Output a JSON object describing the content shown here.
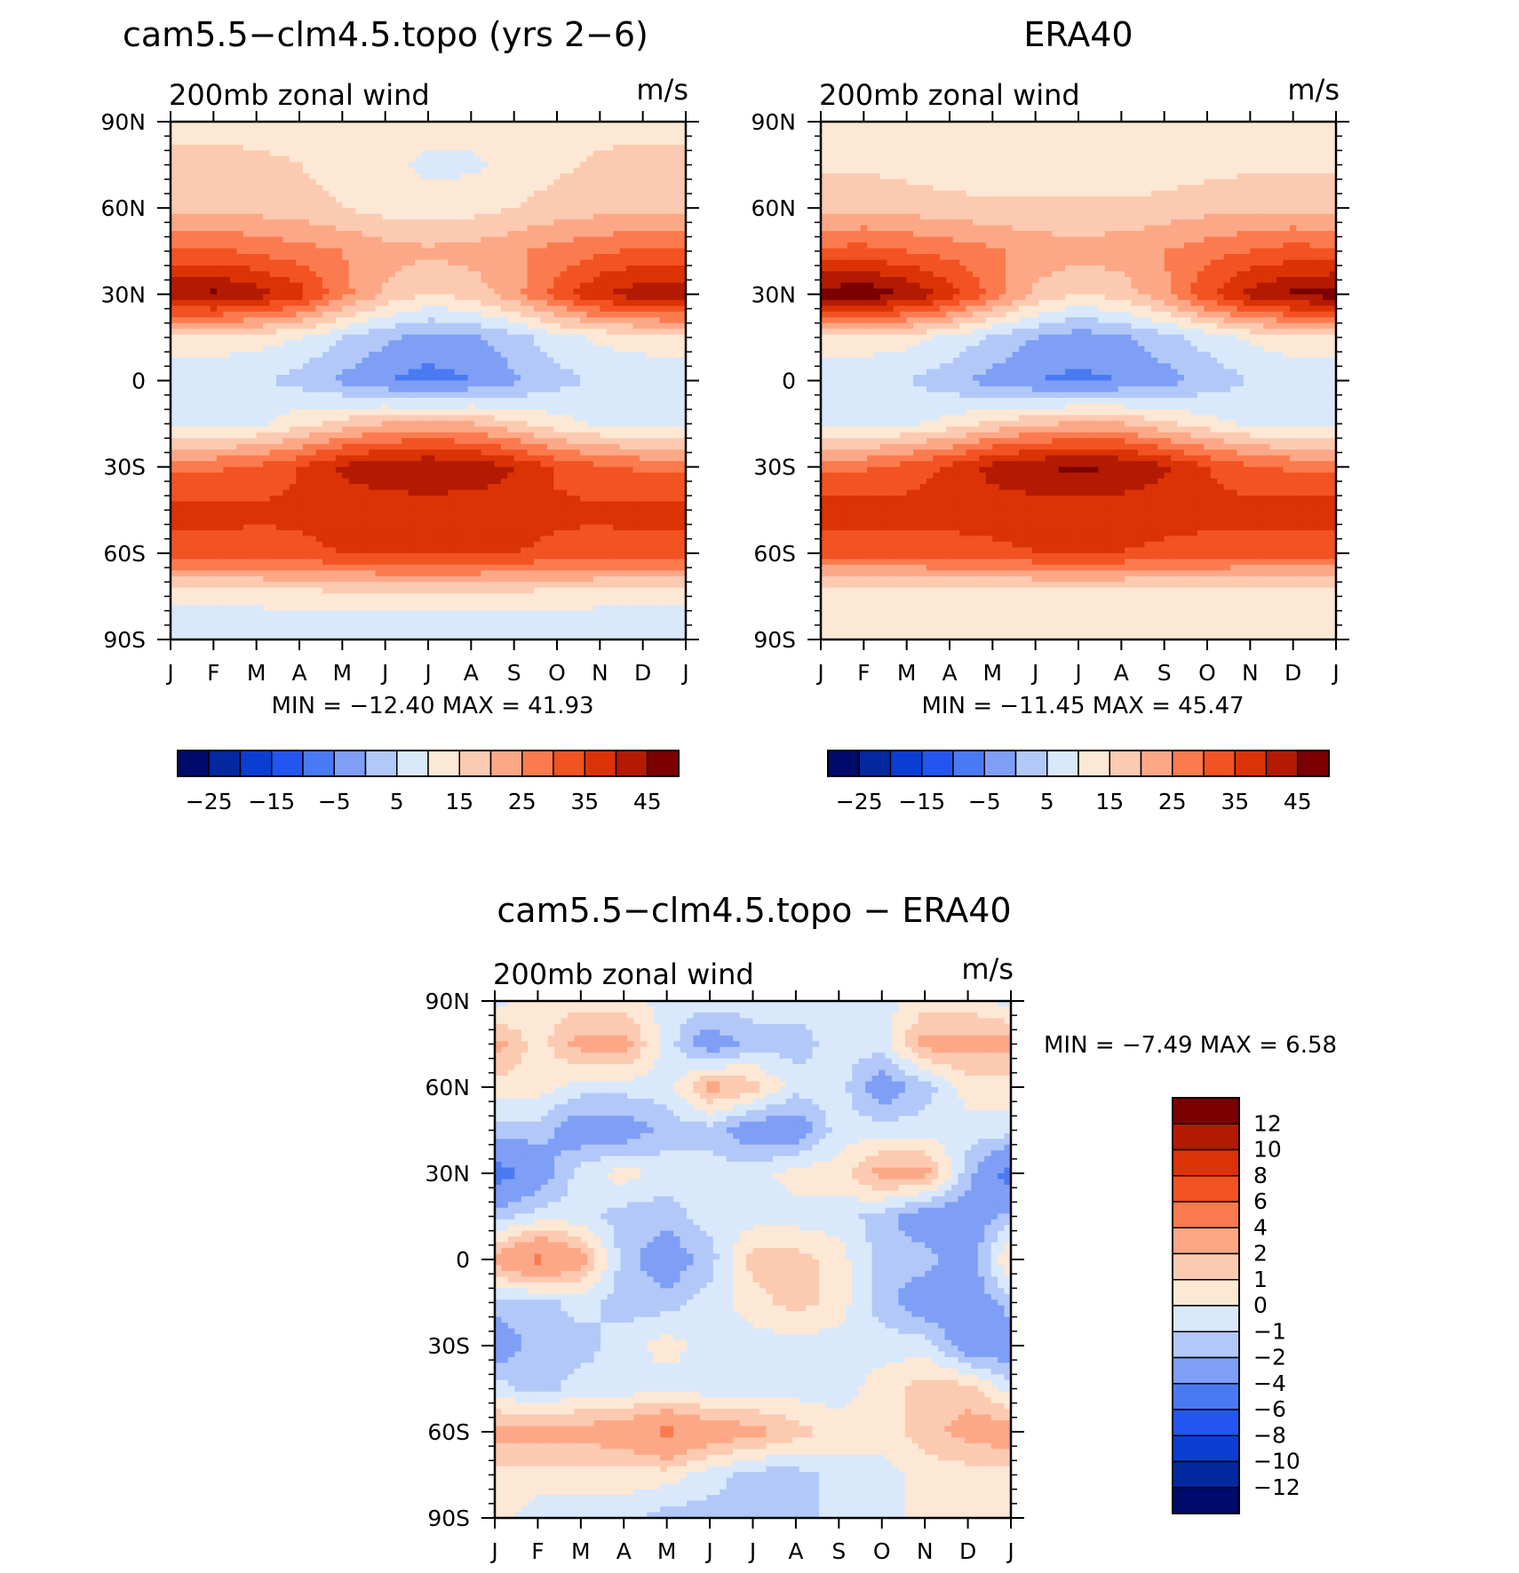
{
  "chart_data": [
    {
      "type": "heatmap",
      "title": "cam5.5−clm4.5.topo (yrs 2−6)",
      "subtitle": "200mb zonal wind",
      "units": "m/s",
      "x_ticks": [
        "J",
        "F",
        "M",
        "A",
        "M",
        "J",
        "J",
        "A",
        "S",
        "O",
        "N",
        "D",
        "J"
      ],
      "y_ticks": [
        "90N",
        "60N",
        "30N",
        "0",
        "30S",
        "60S",
        "90S"
      ],
      "min_label": "MIN = −12.40 MAX =   41.93",
      "min": -12.4,
      "max": 41.93,
      "levels": [
        -30,
        -25,
        -20,
        -15,
        -10,
        -5,
        0,
        5,
        10,
        15,
        20,
        25,
        30,
        35,
        40,
        45
      ],
      "colorbar_labels": [
        "−25",
        "−15",
        "−5",
        "5",
        "15",
        "25",
        "35",
        "45"
      ],
      "field": {
        "lat": [
          90,
          75,
          60,
          45,
          30,
          15,
          0,
          -15,
          -30,
          -45,
          -60,
          -75,
          -90
        ],
        "u": [
          [
            8,
            8,
            8,
            8,
            7,
            7,
            7,
            7,
            8,
            8,
            8,
            8,
            8
          ],
          [
            12,
            12,
            11,
            10,
            8,
            6,
            4,
            4,
            7,
            9,
            11,
            12,
            12
          ],
          [
            14,
            14,
            13,
            12,
            10,
            8,
            7,
            8,
            10,
            12,
            13,
            14,
            14
          ],
          [
            25,
            26,
            24,
            22,
            20,
            17,
            16,
            17,
            19,
            22,
            24,
            26,
            25
          ],
          [
            40,
            41,
            38,
            32,
            22,
            14,
            10,
            12,
            18,
            27,
            35,
            38,
            40
          ],
          [
            8,
            8,
            7,
            5,
            0,
            -4,
            -7,
            -6,
            -2,
            3,
            6,
            7,
            8
          ],
          [
            2,
            1,
            1,
            -2,
            -6,
            -10,
            -12,
            -10,
            -6,
            -2,
            1,
            2,
            2
          ],
          [
            3,
            3,
            4,
            8,
            12,
            15,
            16,
            15,
            11,
            7,
            4,
            3,
            3
          ],
          [
            24,
            24,
            26,
            30,
            36,
            39,
            40,
            39,
            35,
            29,
            26,
            24,
            24
          ],
          [
            32,
            32,
            31,
            31,
            32,
            32,
            32,
            32,
            32,
            31,
            31,
            32,
            32
          ],
          [
            28,
            28,
            28,
            29,
            30,
            31,
            31,
            31,
            30,
            29,
            28,
            28,
            28
          ],
          [
            6,
            6,
            6,
            7,
            7,
            8,
            8,
            8,
            7,
            7,
            6,
            6,
            6
          ],
          [
            2,
            2,
            2,
            2,
            1,
            0,
            0,
            0,
            1,
            2,
            2,
            2,
            2
          ]
        ]
      }
    },
    {
      "type": "heatmap",
      "title": "ERA40",
      "subtitle": "200mb zonal wind",
      "units": "m/s",
      "x_ticks": [
        "J",
        "F",
        "M",
        "A",
        "M",
        "J",
        "J",
        "A",
        "S",
        "O",
        "N",
        "D",
        "J"
      ],
      "y_ticks": [
        "90N",
        "60N",
        "30N",
        "0",
        "30S",
        "60S",
        "90S"
      ],
      "min_label": "MIN = −11.45 MAX =   45.47",
      "min": -11.45,
      "max": 45.47,
      "levels": [
        -30,
        -25,
        -20,
        -15,
        -10,
        -5,
        0,
        5,
        10,
        15,
        20,
        25,
        30,
        35,
        40,
        45
      ],
      "colorbar_labels": [
        "−25",
        "−15",
        "−5",
        "5",
        "15",
        "25",
        "35",
        "45"
      ],
      "field": {
        "lat": [
          90,
          75,
          60,
          45,
          30,
          15,
          0,
          -15,
          -30,
          -45,
          -60,
          -75,
          -90
        ],
        "u": [
          [
            8,
            8,
            8,
            8,
            8,
            8,
            8,
            8,
            8,
            8,
            8,
            8,
            8
          ],
          [
            9,
            9,
            8,
            7,
            6,
            6,
            6,
            6,
            7,
            8,
            9,
            9,
            9
          ],
          [
            14,
            14,
            13,
            12,
            11,
            11,
            11,
            11,
            12,
            13,
            14,
            14,
            14
          ],
          [
            26,
            27,
            25,
            23,
            21,
            18,
            17,
            18,
            20,
            23,
            25,
            27,
            26
          ],
          [
            43,
            44,
            40,
            33,
            23,
            14,
            10,
            12,
            19,
            29,
            37,
            41,
            43
          ],
          [
            8,
            8,
            7,
            4,
            -1,
            -5,
            -8,
            -6,
            -2,
            2,
            6,
            8,
            8
          ],
          [
            2,
            1,
            0,
            -3,
            -7,
            -10,
            -11,
            -10,
            -7,
            -3,
            0,
            2,
            2
          ],
          [
            3,
            3,
            4,
            7,
            11,
            14,
            16,
            15,
            11,
            7,
            4,
            3,
            3
          ],
          [
            24,
            24,
            27,
            31,
            37,
            40,
            41,
            40,
            36,
            30,
            26,
            24,
            24
          ],
          [
            33,
            33,
            32,
            32,
            32,
            32,
            32,
            32,
            32,
            32,
            32,
            33,
            33
          ],
          [
            27,
            27,
            27,
            28,
            29,
            30,
            30,
            30,
            29,
            28,
            27,
            27,
            27
          ],
          [
            6,
            6,
            5,
            5,
            5,
            5,
            5,
            5,
            5,
            5,
            5,
            6,
            6
          ],
          [
            6,
            6,
            6,
            6,
            6,
            6,
            6,
            6,
            6,
            6,
            6,
            6,
            6
          ]
        ]
      }
    },
    {
      "type": "heatmap",
      "title": "cam5.5−clm4.5.topo − ERA40",
      "subtitle": "200mb zonal wind",
      "units": "m/s",
      "x_ticks": [
        "J",
        "F",
        "M",
        "A",
        "M",
        "J",
        "J",
        "A",
        "S",
        "O",
        "N",
        "D",
        "J"
      ],
      "y_ticks": [
        "90N",
        "60N",
        "30N",
        "0",
        "30S",
        "60S",
        "90S"
      ],
      "min_label": "MIN =   −7.49 MAX =    6.58",
      "min": -7.49,
      "max": 6.58,
      "levels": [
        -12,
        -10,
        -8,
        -6,
        -4,
        -2,
        -1,
        0,
        1,
        2,
        4,
        6,
        8,
        10,
        12
      ],
      "colorbar_labels": [
        "12",
        "10",
        "8",
        "6",
        "4",
        "2",
        "1",
        "0",
        "−1",
        "−2",
        "−4",
        "−6",
        "−8",
        "−10",
        "−12"
      ],
      "field": {
        "lat": [
          90,
          75,
          60,
          45,
          30,
          15,
          0,
          -15,
          -30,
          -45,
          -60,
          -75,
          -90
        ],
        "u": [
          [
            -0.5,
            0.5,
            0.5,
            0.5,
            -0.5,
            -0.5,
            -0.5,
            -0.5,
            -0.5,
            -0.5,
            0.5,
            0.5,
            -0.5
          ],
          [
            2.5,
            0.5,
            2.5,
            2.5,
            -0.5,
            -3,
            -1.5,
            -1.5,
            -0.5,
            -0.5,
            2.5,
            2.5,
            2.5
          ],
          [
            0.5,
            0.5,
            -0.5,
            -0.5,
            -0.5,
            2.5,
            1.5,
            -0.5,
            -0.5,
            -3,
            -1.5,
            0.5,
            0.5
          ],
          [
            -1.5,
            -1.5,
            -3,
            -3,
            -1.5,
            -1.5,
            -3,
            -3,
            -0.5,
            -0.5,
            -0.5,
            -0.5,
            -0.5
          ],
          [
            -5,
            -3,
            -0.5,
            0.5,
            -0.5,
            -0.5,
            -0.5,
            0.5,
            0.5,
            2.5,
            2.5,
            -1.5,
            -5
          ],
          [
            -1.5,
            -0.5,
            -0.5,
            -1.5,
            -1.5,
            -0.5,
            -0.5,
            -0.5,
            -0.5,
            -1.5,
            -3,
            -3,
            -1.5
          ],
          [
            2.5,
            4.5,
            2.5,
            -1.5,
            -3,
            -1.5,
            1.5,
            1.5,
            0.5,
            -1.5,
            -1.5,
            -3,
            1.5
          ],
          [
            -1.5,
            -1.5,
            -0.5,
            -1.5,
            -1.5,
            -0.5,
            0.5,
            1.5,
            0.5,
            -1.5,
            -3,
            -3,
            -1.5
          ],
          [
            -3,
            -1.5,
            -1.5,
            -0.5,
            0.5,
            -0.5,
            -0.5,
            -0.5,
            -0.5,
            -0.5,
            -0.5,
            -3,
            -3
          ],
          [
            -0.5,
            -1.5,
            -0.5,
            -0.5,
            -0.5,
            -0.5,
            -0.5,
            -0.5,
            -0.5,
            0.5,
            1.5,
            1.5,
            -0.5
          ],
          [
            2.5,
            2.5,
            2.5,
            3,
            4.5,
            3,
            2.5,
            1.5,
            0.5,
            0.5,
            1.5,
            2.5,
            3
          ],
          [
            0.5,
            0.5,
            0.5,
            0.5,
            0.5,
            -0.5,
            -1.5,
            -1.5,
            -0.5,
            -0.5,
            0.5,
            0.5,
            0.5
          ],
          [
            0.5,
            -0.5,
            -0.5,
            -0.5,
            -1.5,
            -1.5,
            -1.5,
            -1.5,
            -0.5,
            -0.5,
            0.5,
            0.5,
            0.5
          ]
        ]
      }
    }
  ],
  "colors": {
    "diverging": [
      "#000a6a",
      "#0428a0",
      "#0a3ed3",
      "#2356f1",
      "#4a7af3",
      "#7e9ff5",
      "#b2c8f8",
      "#d9e9fb",
      "#fde8d5",
      "#fccab1",
      "#fca887",
      "#fb7b4f",
      "#f35222",
      "#db3305",
      "#b41a02",
      "#7c0001"
    ]
  }
}
